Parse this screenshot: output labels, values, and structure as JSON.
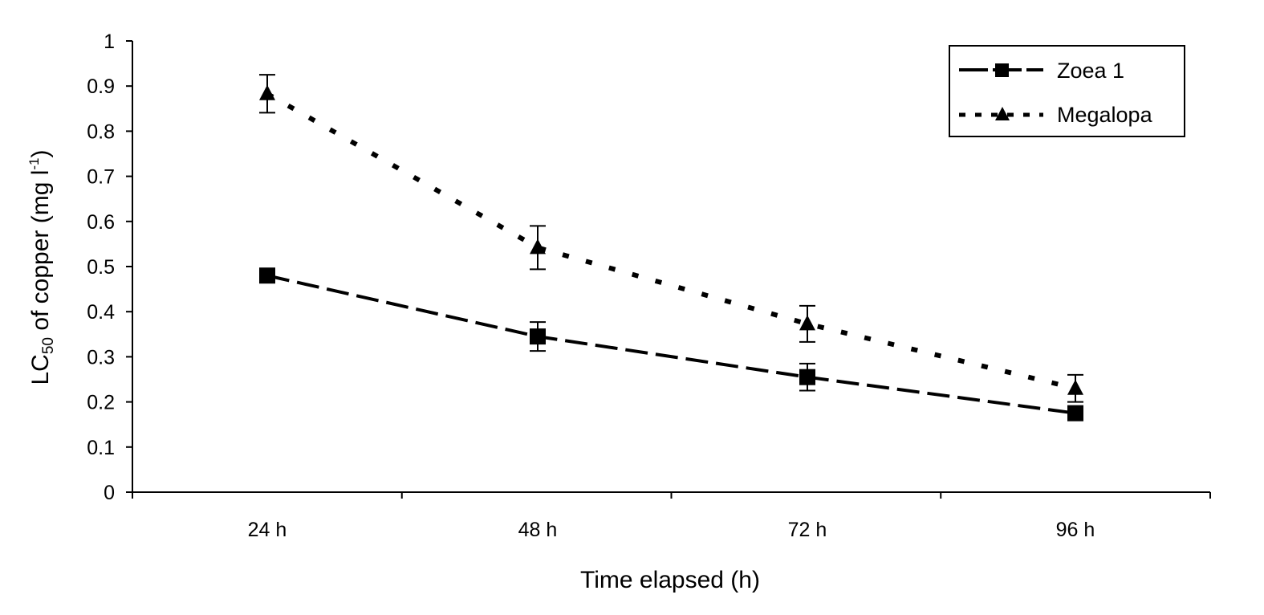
{
  "chart_data": {
    "type": "line",
    "categories": [
      "24 h",
      "48 h",
      "72 h",
      "96 h"
    ],
    "series": [
      {
        "name": "Zoea 1",
        "values": [
          0.48,
          0.345,
          0.255,
          0.175
        ],
        "error": [
          0.0,
          0.032,
          0.03,
          0.0
        ],
        "marker": "square",
        "line": "dashed-long",
        "color": "#000000"
      },
      {
        "name": "Megalopa",
        "values": [
          0.883,
          0.542,
          0.373,
          0.23
        ],
        "error": [
          0.042,
          0.048,
          0.04,
          0.03
        ],
        "marker": "triangle",
        "line": "dotted",
        "color": "#000000"
      }
    ],
    "xlabel": "Time elapsed (h)",
    "ylabel_main": "LC",
    "ylabel_sub": "50",
    "ylabel_rest": " of copper (mg l",
    "ylabel_sup": "-1",
    "ylabel_end": ")",
    "ylim": [
      0,
      1
    ],
    "yticks": [
      "0",
      "0.1",
      "0.2",
      "0.3",
      "0.4",
      "0.5",
      "0.6",
      "0.7",
      "0.8",
      "0.9",
      "1"
    ],
    "grid": false,
    "legend_position": "top-right"
  }
}
